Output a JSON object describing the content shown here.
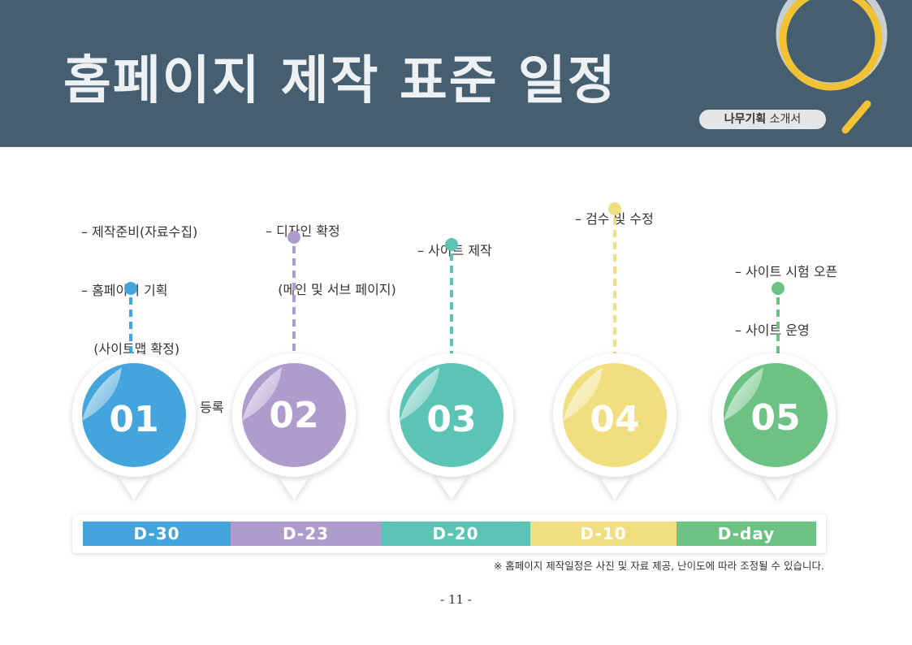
{
  "header": {
    "title": "홈페이지 제작 표준 일정",
    "badge_strong": "나무기획",
    "badge_rest": " 소개서"
  },
  "stages": [
    {
      "number": "01",
      "label": "D-30",
      "color": "#44a4dc",
      "notes": [
        "– 제작준비(자료수집)",
        "– 홈페이지 기획",
        "   (사이트맵 확정)",
        "– 웹호스팅 및 도메인 등록"
      ]
    },
    {
      "number": "02",
      "label": "D-23",
      "color": "#b09ccc",
      "notes": [
        "– 디자인 확정",
        "   (메인 및 서브 페이지)"
      ]
    },
    {
      "number": "03",
      "label": "D-20",
      "color": "#5bc4b4",
      "notes": [
        "– 사이트 제작"
      ]
    },
    {
      "number": "04",
      "label": "D-10",
      "color": "#f1df7f",
      "notes": [
        "– 검수 및 수정"
      ]
    },
    {
      "number": "05",
      "label": "D-day",
      "color": "#6cc282",
      "notes": [
        "– 사이트 시험 오픈",
        "– 사이트 운영"
      ]
    }
  ],
  "footnote": "※ 홈페이지 제작일정은 사진 및 자료 제공, 난이도에 따라 조정될 수 있습니다.",
  "page_number": "- 11 -"
}
